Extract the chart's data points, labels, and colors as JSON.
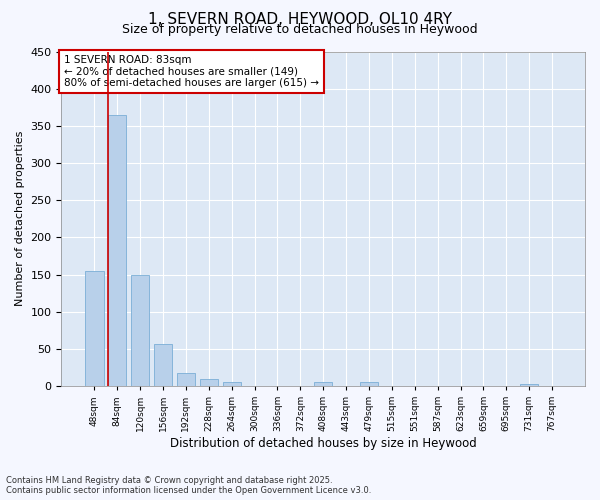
{
  "title": "1, SEVERN ROAD, HEYWOOD, OL10 4RY",
  "subtitle": "Size of property relative to detached houses in Heywood",
  "xlabel": "Distribution of detached houses by size in Heywood",
  "ylabel": "Number of detached properties",
  "categories": [
    "48sqm",
    "84sqm",
    "120sqm",
    "156sqm",
    "192sqm",
    "228sqm",
    "264sqm",
    "300sqm",
    "336sqm",
    "372sqm",
    "408sqm",
    "443sqm",
    "479sqm",
    "515sqm",
    "551sqm",
    "587sqm",
    "623sqm",
    "659sqm",
    "695sqm",
    "731sqm",
    "767sqm"
  ],
  "values": [
    155,
    365,
    150,
    57,
    18,
    10,
    5,
    0,
    0,
    0,
    5,
    0,
    5,
    0,
    0,
    0,
    0,
    0,
    0,
    3,
    0
  ],
  "bar_color": "#b8d0ea",
  "bar_edge_color": "#7aaed6",
  "vline_color": "#cc0000",
  "annotation_text": "1 SEVERN ROAD: 83sqm\n← 20% of detached houses are smaller (149)\n80% of semi-detached houses are larger (615) →",
  "annotation_box_edge_color": "#cc0000",
  "ylim": [
    0,
    450
  ],
  "yticks": [
    0,
    50,
    100,
    150,
    200,
    250,
    300,
    350,
    400,
    450
  ],
  "footer_text": "Contains HM Land Registry data © Crown copyright and database right 2025.\nContains public sector information licensed under the Open Government Licence v3.0.",
  "bg_color": "#f5f7ff",
  "plot_bg_color": "#dde8f5"
}
